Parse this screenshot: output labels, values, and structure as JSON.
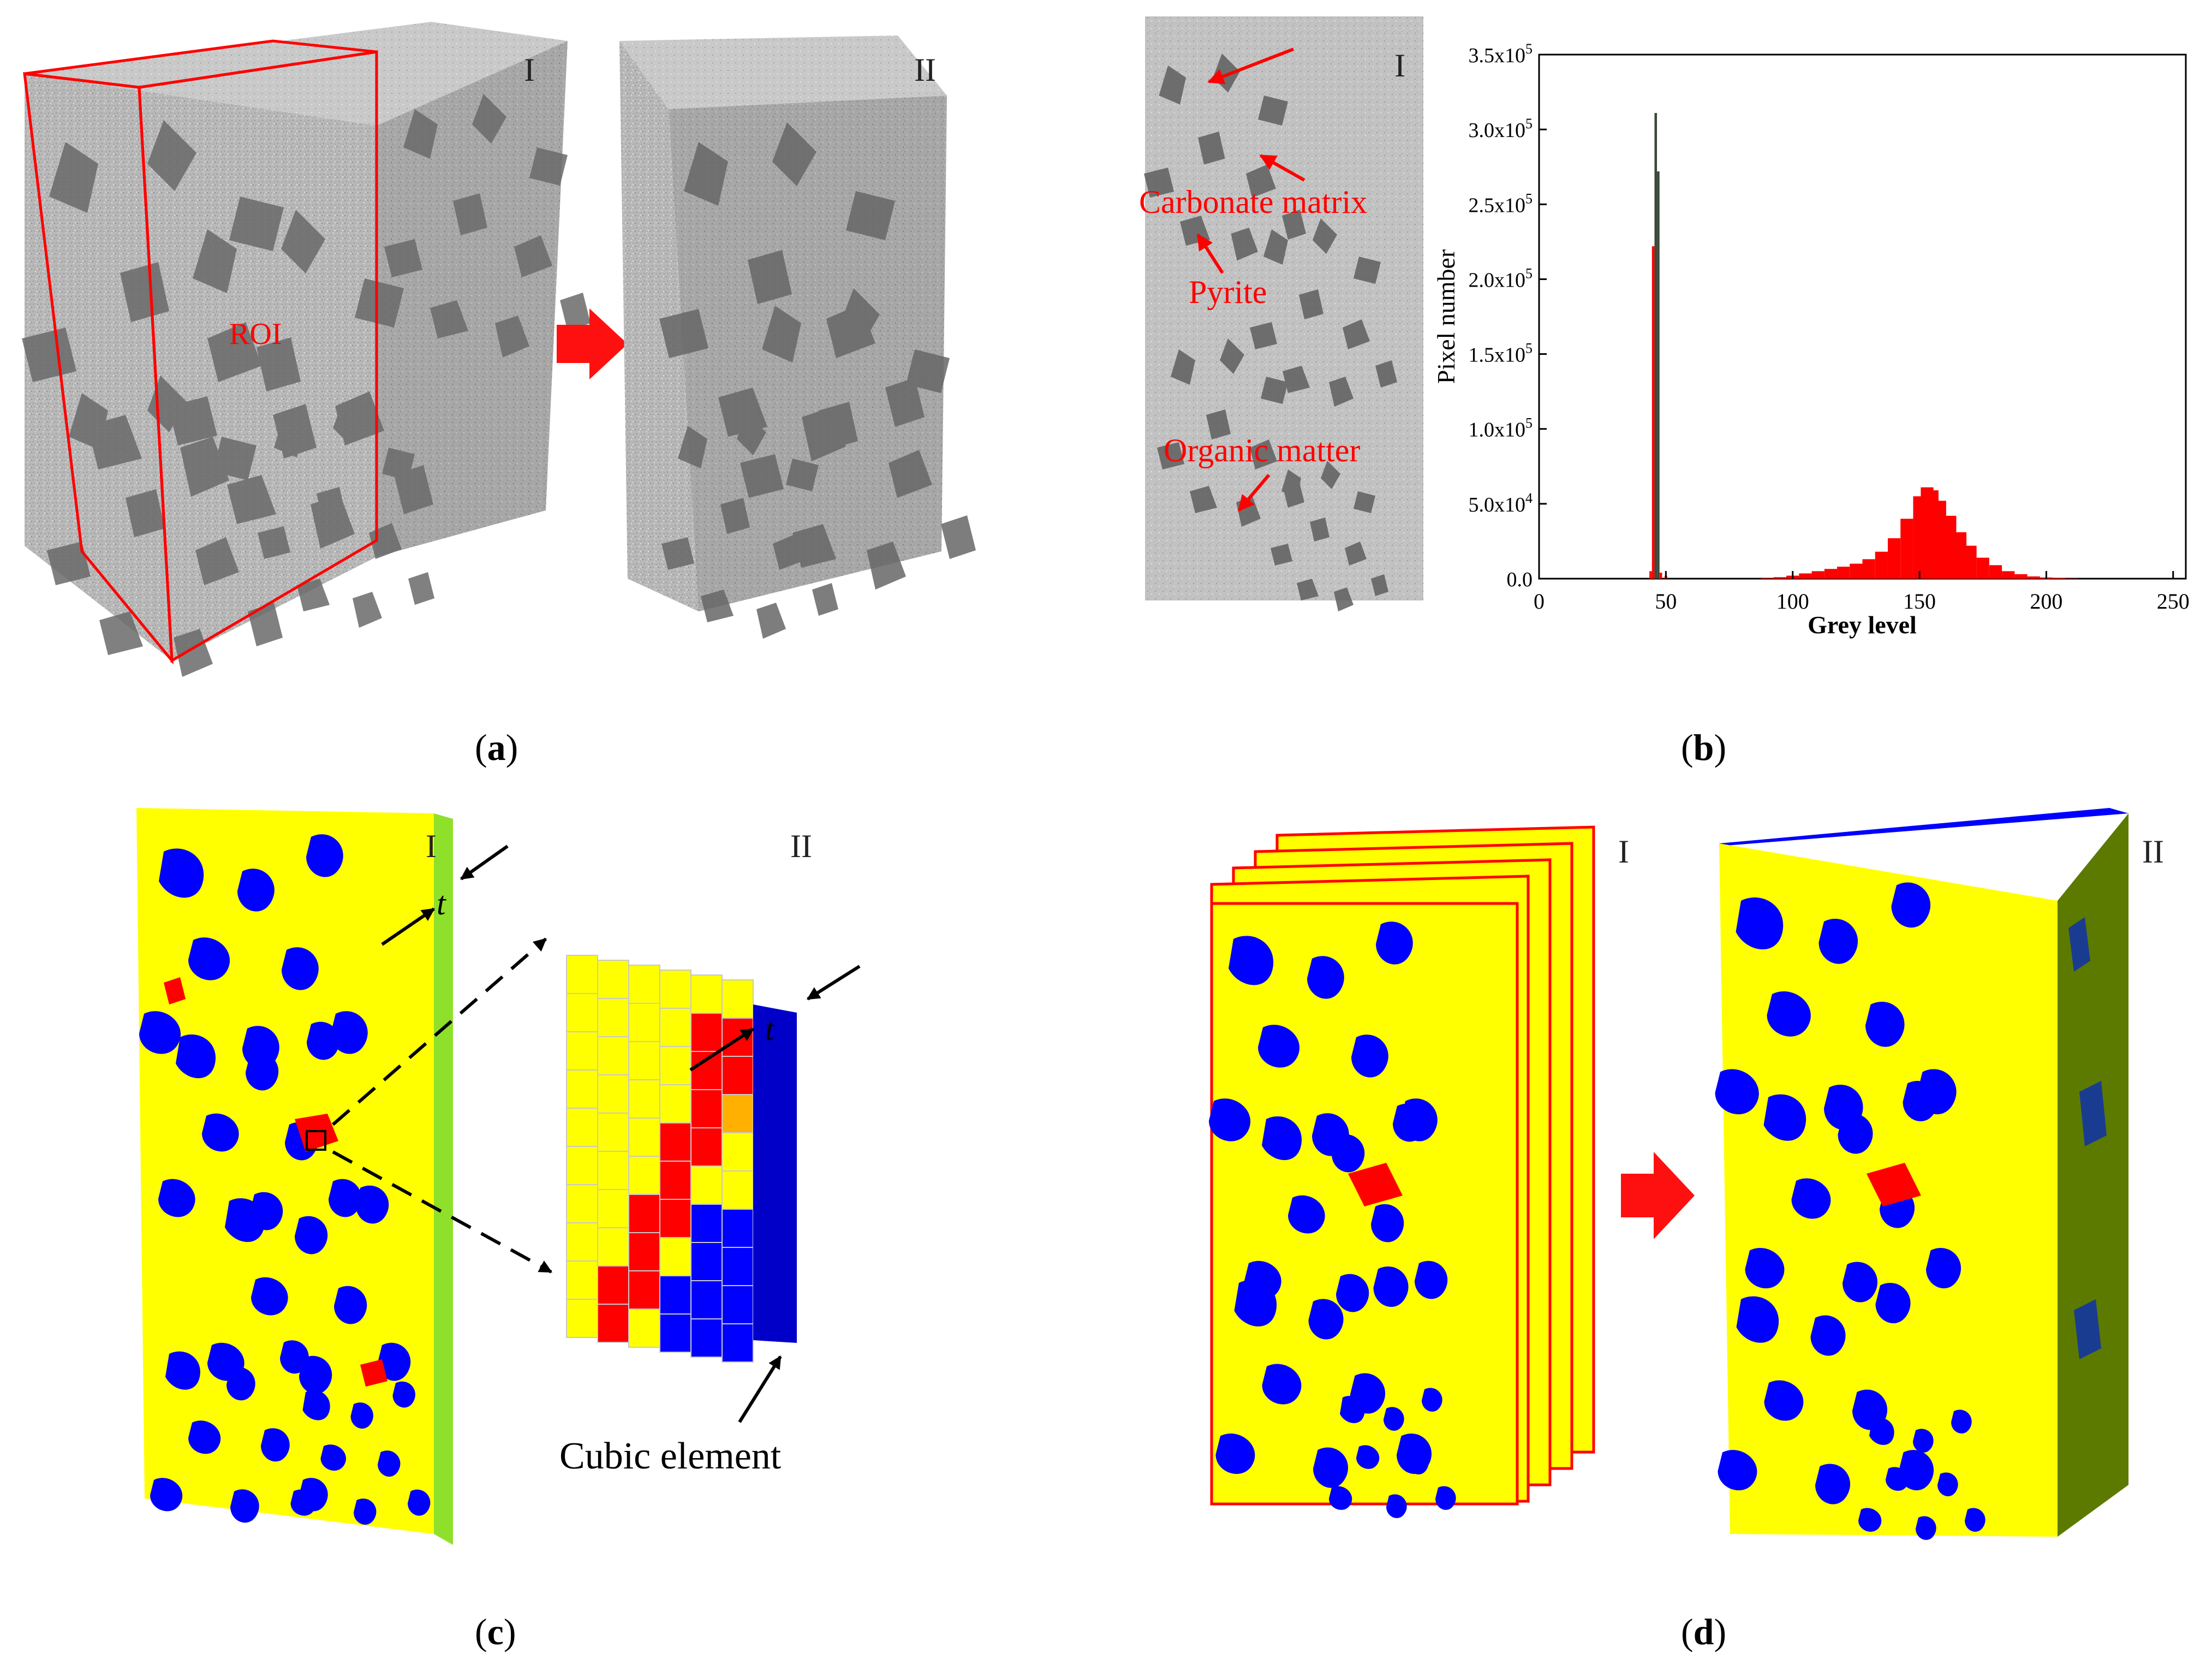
{
  "panels": {
    "a": {
      "caption_open": "(",
      "caption_letter": "a",
      "caption_close": ")",
      "roman_left": "I",
      "roman_right": "II",
      "roi_label": "ROI"
    },
    "b": {
      "caption_open": "(",
      "caption_letter": "b",
      "caption_close": ")",
      "roman": "I",
      "annotations": {
        "carbonate": "Carbonate matrix",
        "pyrite": "Pyrite",
        "organic": "Organic matter"
      }
    },
    "c": {
      "caption_open": "(",
      "caption_letter": "c",
      "caption_close": ")",
      "roman_left": "I",
      "roman_right": "II",
      "thickness_label": "t",
      "cubic_label": "Cubic element"
    },
    "d": {
      "caption_open": "(",
      "caption_letter": "d",
      "caption_close": ")",
      "roman_left": "I",
      "roman_right": "II"
    }
  },
  "colors": {
    "accent_red": "#ff0000",
    "yellow": "#ffff00",
    "blue": "#0000ff",
    "orange": "#ffb000",
    "green_face": "#5c7a00",
    "grey_rock": "#bdbdbd",
    "dark_grey": "#6e6e6e"
  },
  "chart_data": {
    "type": "bar",
    "xlabel": "Grey level",
    "ylabel": "Pixel number",
    "xlim": [
      0,
      255
    ],
    "ylim": [
      0,
      350000
    ],
    "xticks": [
      "0",
      "50",
      "100",
      "150",
      "200",
      "250"
    ],
    "yticks": [
      {
        "value": 0,
        "base": "0.0",
        "exp": ""
      },
      {
        "value": 50000,
        "base": "5.0x10",
        "exp": "4"
      },
      {
        "value": 100000,
        "base": "1.0x10",
        "exp": "5"
      },
      {
        "value": 150000,
        "base": "1.5x10",
        "exp": "5"
      },
      {
        "value": 200000,
        "base": "2.0x10",
        "exp": "5"
      },
      {
        "value": 250000,
        "base": "2.5x10",
        "exp": "5"
      },
      {
        "value": 300000,
        "base": "3.0x10",
        "exp": "5"
      },
      {
        "value": 350000,
        "base": "3.5x10",
        "exp": "5"
      }
    ],
    "series": [
      {
        "x": 44,
        "y": 5000
      },
      {
        "x": 45,
        "y": 222000
      },
      {
        "x": 46,
        "y": 311000
      },
      {
        "x": 47,
        "y": 272000
      },
      {
        "x": 48,
        "y": 4000
      },
      {
        "x": 50,
        "y": 2000
      },
      {
        "x": 90,
        "y": 300
      },
      {
        "x": 95,
        "y": 1000
      },
      {
        "x": 100,
        "y": 2000
      },
      {
        "x": 105,
        "y": 3500
      },
      {
        "x": 110,
        "y": 5000
      },
      {
        "x": 115,
        "y": 6500
      },
      {
        "x": 120,
        "y": 8000
      },
      {
        "x": 125,
        "y": 10000
      },
      {
        "x": 130,
        "y": 13000
      },
      {
        "x": 135,
        "y": 18000
      },
      {
        "x": 140,
        "y": 27000
      },
      {
        "x": 145,
        "y": 40000
      },
      {
        "x": 150,
        "y": 55000
      },
      {
        "x": 153,
        "y": 61000
      },
      {
        "x": 155,
        "y": 59000
      },
      {
        "x": 158,
        "y": 52000
      },
      {
        "x": 162,
        "y": 42000
      },
      {
        "x": 166,
        "y": 31000
      },
      {
        "x": 170,
        "y": 22000
      },
      {
        "x": 175,
        "y": 14000
      },
      {
        "x": 180,
        "y": 9000
      },
      {
        "x": 185,
        "y": 5000
      },
      {
        "x": 190,
        "y": 3000
      },
      {
        "x": 195,
        "y": 1500
      },
      {
        "x": 200,
        "y": 800
      },
      {
        "x": 205,
        "y": 400
      },
      {
        "x": 210,
        "y": 150
      }
    ]
  }
}
